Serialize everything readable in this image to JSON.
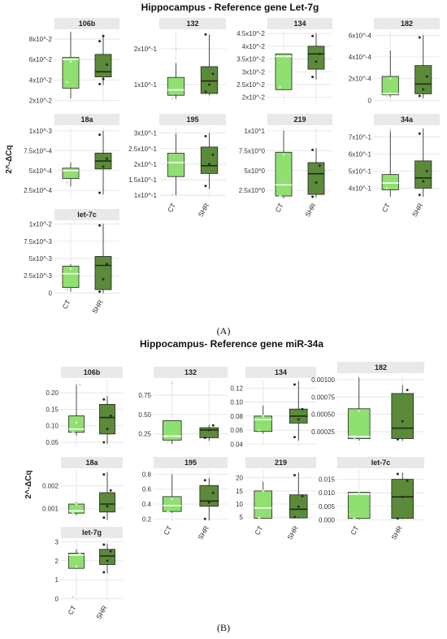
{
  "figure": {
    "panel_a_title": "Hippocampus - Reference gene Let-7g",
    "panel_b_title": "Hippocampus- Reference gene miR-34a",
    "panel_a_tag": "(A)",
    "panel_b_tag": "(B)",
    "y_axis_label": "2^-ΔCq"
  },
  "colors": {
    "ct": "#8fe070",
    "shr": "#5b8a3a",
    "strip": "#e9e9e9",
    "grid": "#e2e2e2",
    "point": "#2a2a2a",
    "point_ct": "#c9f0b8"
  },
  "chart_data": [
    {
      "panel": "A",
      "title": "106b",
      "type": "box",
      "categories": [
        "CT",
        "SHR"
      ],
      "ylim": [
        0.018,
        0.088
      ],
      "yticks": [
        0.02,
        0.04,
        0.06,
        0.08
      ],
      "ytick_labels": [
        "2x10^-2",
        "4x10^-2",
        "6x10^-2",
        "8x10^-2"
      ],
      "boxes": [
        {
          "group": "CT",
          "min": 0.022,
          "q1": 0.032,
          "median": 0.06,
          "q3": 0.062,
          "max": 0.087,
          "points": [
            0.038,
            0.058
          ]
        },
        {
          "group": "SHR",
          "min": 0.035,
          "q1": 0.043,
          "median": 0.048,
          "q3": 0.065,
          "max": 0.083,
          "points": [
            0.036,
            0.041,
            0.055,
            0.078,
            0.083
          ]
        }
      ]
    },
    {
      "panel": "A",
      "title": "132",
      "type": "box",
      "categories": [
        "CT",
        "SHR"
      ],
      "ylim": [
        0.05,
        0.25
      ],
      "yticks": [
        0.1,
        0.2
      ],
      "ytick_labels": [
        "1x10^-1",
        "2x10^-1"
      ],
      "boxes": [
        {
          "group": "CT",
          "min": 0.06,
          "q1": 0.07,
          "median": 0.085,
          "q3": 0.12,
          "max": 0.16,
          "points": [
            0.06,
            0.2
          ]
        },
        {
          "group": "SHR",
          "min": 0.07,
          "q1": 0.075,
          "median": 0.11,
          "q3": 0.15,
          "max": 0.24,
          "points": [
            0.08,
            0.1,
            0.13,
            0.24
          ]
        }
      ]
    },
    {
      "panel": "A",
      "title": "134",
      "type": "box",
      "categories": [
        "CT",
        "SHR"
      ],
      "ylim": [
        0.018,
        0.046
      ],
      "yticks": [
        0.02,
        0.025,
        0.03,
        0.035,
        0.04,
        0.045
      ],
      "ytick_labels": [
        "2x10^-2",
        "2.5x10^-2",
        "3x10^-2",
        "3.5x10^-2",
        "4x10^-2",
        "4.5x10^-2"
      ],
      "boxes": [
        {
          "group": "CT",
          "min": 0.023,
          "q1": 0.023,
          "median": 0.036,
          "q3": 0.037,
          "max": 0.037,
          "points": [
            0.024,
            0.036
          ]
        },
        {
          "group": "SHR",
          "min": 0.027,
          "q1": 0.031,
          "median": 0.037,
          "q3": 0.04,
          "max": 0.045,
          "points": [
            0.028,
            0.034,
            0.037,
            0.044
          ]
        }
      ]
    },
    {
      "panel": "A",
      "title": "182",
      "type": "box",
      "categories": [
        "CT",
        "SHR"
      ],
      "ylim": [
        -2e-05,
        0.00064
      ],
      "yticks": [
        0,
        0.0002,
        0.0004,
        0.0006
      ],
      "ytick_labels": [
        "0",
        "2x10^-4",
        "4x10^-4",
        "6x10^-4"
      ],
      "boxes": [
        {
          "group": "CT",
          "min": 3e-05,
          "q1": 5e-05,
          "median": 6e-05,
          "q3": 0.00022,
          "max": 0.00046,
          "points": [
            4e-05,
            0.0002
          ]
        },
        {
          "group": "SHR",
          "min": 2e-05,
          "q1": 6e-05,
          "median": 0.00015,
          "q3": 0.00032,
          "max": 0.0006,
          "points": [
            4e-05,
            0.0001,
            0.00022,
            0.00058
          ]
        }
      ]
    },
    {
      "panel": "A",
      "title": "18a",
      "type": "box",
      "categories": [
        "CT",
        "SHR"
      ],
      "ylim": [
        0.00015,
        0.00105
      ],
      "yticks": [
        0.00025,
        0.0005,
        0.00075,
        0.001
      ],
      "ytick_labels": [
        "2.5x10^-4",
        "5x10^-4",
        "7.5x10^-4",
        "1x10^-3"
      ],
      "boxes": [
        {
          "group": "CT",
          "min": 0.0003,
          "q1": 0.0004,
          "median": 0.0005,
          "q3": 0.00053,
          "max": 0.0006,
          "points": [
            0.00035,
            0.0005
          ]
        },
        {
          "group": "SHR",
          "min": 0.0002,
          "q1": 0.00052,
          "median": 0.00062,
          "q3": 0.00072,
          "max": 0.001,
          "points": [
            0.00022,
            0.00055,
            0.00065,
            0.00095
          ]
        }
      ]
    },
    {
      "panel": "A",
      "title": "195",
      "type": "box",
      "categories": [
        "CT",
        "SHR"
      ],
      "ylim": [
        0.09,
        0.32
      ],
      "yticks": [
        0.1,
        0.15,
        0.2,
        0.25,
        0.3
      ],
      "ytick_labels": [
        "1x10^-1",
        "1.5x10^-1",
        "2x10^-1",
        "2.5x10^-1",
        "3x10^-1"
      ],
      "boxes": [
        {
          "group": "CT",
          "min": 0.1,
          "q1": 0.16,
          "median": 0.205,
          "q3": 0.235,
          "max": 0.3,
          "points": [
            0.1,
            0.3
          ]
        },
        {
          "group": "SHR",
          "min": 0.12,
          "q1": 0.17,
          "median": 0.195,
          "q3": 0.255,
          "max": 0.3,
          "points": [
            0.13,
            0.2,
            0.23,
            0.29
          ]
        }
      ]
    },
    {
      "panel": "A",
      "title": "219",
      "type": "box",
      "categories": [
        "CT",
        "SHR"
      ],
      "ylim": [
        1.5,
        10.5
      ],
      "yticks": [
        2.5,
        5,
        7.5,
        10
      ],
      "ytick_labels": [
        "2.5x10^0",
        "5x10^0",
        "7.5x10^0",
        "1x10^1"
      ],
      "boxes": [
        {
          "group": "CT",
          "min": 1.5,
          "q1": 1.8,
          "median": 3.2,
          "q3": 7.3,
          "max": 10,
          "points": [
            1.8,
            7.0
          ]
        },
        {
          "group": "SHR",
          "min": 1.6,
          "q1": 2.0,
          "median": 4.6,
          "q3": 6.0,
          "max": 7.8,
          "points": [
            1.7,
            3.5,
            5.6,
            7.6
          ]
        }
      ]
    },
    {
      "panel": "A",
      "title": "34a",
      "type": "box",
      "categories": [
        "CT",
        "SHR"
      ],
      "ylim": [
        0.34,
        0.76
      ],
      "yticks": [
        0.4,
        0.5,
        0.6,
        0.7
      ],
      "ytick_labels": [
        "4x10^-1",
        "5x10^-1",
        "6x10^-1",
        "7x10^-1"
      ],
      "boxes": [
        {
          "group": "CT",
          "min": 0.35,
          "q1": 0.39,
          "median": 0.43,
          "q3": 0.48,
          "max": 0.74,
          "points": [
            0.4,
            0.74
          ]
        },
        {
          "group": "SHR",
          "min": 0.35,
          "q1": 0.4,
          "median": 0.46,
          "q3": 0.56,
          "max": 0.75,
          "points": [
            0.36,
            0.44,
            0.5,
            0.72
          ]
        }
      ]
    },
    {
      "panel": "A",
      "title": "let-7c",
      "type": "box",
      "categories": [
        "CT",
        "SHR"
      ],
      "ylim": [
        -0.0003,
        0.0103
      ],
      "yticks": [
        0,
        0.0025,
        0.005,
        0.0075,
        0.01
      ],
      "ytick_labels": [
        "0",
        "2.5x10^-3",
        "5x10^-3",
        "7.5x10^-3",
        "1x10^-2"
      ],
      "boxes": [
        {
          "group": "CT",
          "min": 0.0002,
          "q1": 0.0008,
          "median": 0.0028,
          "q3": 0.0039,
          "max": 0.0042,
          "points": [
            0.0005,
            0.0035
          ]
        },
        {
          "group": "SHR",
          "min": 0.0,
          "q1": 0.0005,
          "median": 0.004,
          "q3": 0.0053,
          "max": 0.01,
          "points": [
            0.0002,
            0.002,
            0.0042,
            0.0098
          ]
        }
      ]
    },
    {
      "panel": "B",
      "title": "106b",
      "type": "box",
      "categories": [
        "CT",
        "SHR"
      ],
      "ylim": [
        0.04,
        0.24
      ],
      "yticks": [
        0.05,
        0.1,
        0.15,
        0.2
      ],
      "ytick_labels": [
        "0.05",
        "0.10",
        "0.15",
        "0.20"
      ],
      "boxes": [
        {
          "group": "CT",
          "min": 0.07,
          "q1": 0.08,
          "median": 0.09,
          "q3": 0.13,
          "max": 0.225,
          "points": [
            0.08,
            0.11,
            0.225
          ]
        },
        {
          "group": "SHR",
          "min": 0.045,
          "q1": 0.075,
          "median": 0.125,
          "q3": 0.165,
          "max": 0.19,
          "points": [
            0.05,
            0.09,
            0.13,
            0.18
          ]
        }
      ]
    },
    {
      "panel": "B",
      "title": "132",
      "type": "box",
      "categories": [
        "CT",
        "SHR"
      ],
      "ylim": [
        0.1,
        0.95
      ],
      "yticks": [
        0.25,
        0.5,
        0.75
      ],
      "ytick_labels": [
        "0.25",
        "0.50",
        "0.75"
      ],
      "boxes": [
        {
          "group": "CT",
          "min": 0.12,
          "q1": 0.17,
          "median": 0.22,
          "q3": 0.42,
          "max": 0.42,
          "points": [
            0.15,
            0.9
          ]
        },
        {
          "group": "SHR",
          "min": 0.16,
          "q1": 0.2,
          "median": 0.3,
          "q3": 0.33,
          "max": 0.37,
          "points": [
            0.2,
            0.3,
            0.36
          ]
        }
      ]
    },
    {
      "panel": "B",
      "title": "134",
      "type": "box",
      "categories": [
        "CT",
        "SHR"
      ],
      "ylim": [
        0.038,
        0.132
      ],
      "yticks": [
        0.04,
        0.06,
        0.08,
        0.1,
        0.12
      ],
      "ytick_labels": [
        "0.04",
        "0.06",
        "0.08",
        "0.10",
        "0.12"
      ],
      "boxes": [
        {
          "group": "CT",
          "min": 0.055,
          "q1": 0.058,
          "median": 0.075,
          "q3": 0.08,
          "max": 0.095,
          "points": [
            0.06,
            0.08
          ]
        },
        {
          "group": "SHR",
          "min": 0.045,
          "q1": 0.07,
          "median": 0.08,
          "q3": 0.09,
          "max": 0.13,
          "points": [
            0.05,
            0.075,
            0.09,
            0.125
          ]
        }
      ]
    },
    {
      "panel": "B",
      "title": "182",
      "type": "box",
      "categories": [
        "CT",
        "SHR"
      ],
      "ylim": [
        5e-05,
        0.00107
      ],
      "yticks": [
        0.00025,
        0.0005,
        0.00075,
        0.001
      ],
      "ytick_labels": [
        "0.00025",
        "0.00050",
        "0.00075",
        "0.00100"
      ],
      "boxes": [
        {
          "group": "CT",
          "min": 0.00012,
          "q1": 0.00015,
          "median": 0.00018,
          "q3": 0.00058,
          "max": 0.00103,
          "points": [
            0.00014,
            0.00055
          ]
        },
        {
          "group": "SHR",
          "min": 0.00012,
          "q1": 0.00015,
          "median": 0.0003,
          "q3": 0.0008,
          "max": 0.00092,
          "points": [
            0.00014,
            0.0004,
            0.00085
          ]
        }
      ]
    },
    {
      "panel": "B",
      "title": "18a",
      "type": "box",
      "categories": [
        "CT",
        "SHR"
      ],
      "ylim": [
        0.00045,
        0.0027
      ],
      "yticks": [
        0.001,
        0.002
      ],
      "ytick_labels": [
        "0.001",
        "0.002"
      ],
      "boxes": [
        {
          "group": "CT",
          "min": 0.0007,
          "q1": 0.0008,
          "median": 0.0009,
          "q3": 0.0012,
          "max": 0.0013,
          "points": [
            0.0008,
            0.0012
          ]
        },
        {
          "group": "SHR",
          "min": 0.0005,
          "q1": 0.00085,
          "median": 0.0012,
          "q3": 0.0017,
          "max": 0.0026,
          "points": [
            0.0006,
            0.0011,
            0.0018,
            0.0025
          ]
        }
      ]
    },
    {
      "panel": "B",
      "title": "195",
      "type": "box",
      "categories": [
        "CT",
        "SHR"
      ],
      "ylim": [
        0.17,
        0.86
      ],
      "yticks": [
        0.2,
        0.4,
        0.6,
        0.8
      ],
      "ytick_labels": [
        "0.2",
        "0.4",
        "0.6",
        "0.8"
      ],
      "boxes": [
        {
          "group": "CT",
          "min": 0.28,
          "q1": 0.3,
          "median": 0.38,
          "q3": 0.5,
          "max": 0.8,
          "points": [
            0.3,
            0.47
          ]
        },
        {
          "group": "SHR",
          "min": 0.18,
          "q1": 0.37,
          "median": 0.44,
          "q3": 0.65,
          "max": 0.75,
          "points": [
            0.2,
            0.42,
            0.55,
            0.72
          ]
        }
      ]
    },
    {
      "panel": "B",
      "title": "219",
      "type": "box",
      "categories": [
        "CT",
        "SHR"
      ],
      "ylim": [
        3.5,
        23
      ],
      "yticks": [
        5,
        10,
        15,
        20
      ],
      "ytick_labels": [
        "5",
        "10",
        "15",
        "20"
      ],
      "boxes": [
        {
          "group": "CT",
          "min": 4.5,
          "q1": 4.6,
          "median": 8.5,
          "q3": 15,
          "max": 18.5,
          "points": [
            4.8,
            15
          ]
        },
        {
          "group": "SHR",
          "min": 4.5,
          "q1": 4.7,
          "median": 8.0,
          "q3": 13.5,
          "max": 22,
          "points": [
            5,
            9,
            13,
            21
          ]
        }
      ]
    },
    {
      "panel": "B",
      "title": "let-7c",
      "type": "box",
      "categories": [
        "CT",
        "SHR"
      ],
      "ylim": [
        -0.0005,
        0.0185
      ],
      "yticks": [
        0,
        0.005,
        0.01,
        0.015
      ],
      "ytick_labels": [
        "0.000",
        "0.005",
        "0.010",
        "0.015"
      ],
      "boxes": [
        {
          "group": "CT",
          "min": 0.0002,
          "q1": 0.0005,
          "median": 0.0095,
          "q3": 0.0102,
          "max": 0.0102,
          "points": [
            0.0005,
            0.0098
          ]
        },
        {
          "group": "SHR",
          "min": 0.0003,
          "q1": 0.0005,
          "median": 0.0085,
          "q3": 0.015,
          "max": 0.0175,
          "points": [
            0.0005,
            0.0085,
            0.0145,
            0.017
          ]
        }
      ]
    },
    {
      "panel": "B",
      "title": "let-7g",
      "type": "box",
      "categories": [
        "CT",
        "SHR"
      ],
      "ylim": [
        -0.1,
        3.1
      ],
      "yticks": [
        0,
        1,
        2,
        3
      ],
      "ytick_labels": [
        "0",
        "1",
        "2",
        "3"
      ],
      "boxes": [
        {
          "group": "CT",
          "min": 1.6,
          "q1": 1.6,
          "median": 2.3,
          "q3": 2.4,
          "max": 2.6,
          "points": [
            0.1,
            1.7,
            2.4
          ]
        },
        {
          "group": "SHR",
          "min": 1.35,
          "q1": 1.8,
          "median": 2.25,
          "q3": 2.6,
          "max": 2.9,
          "points": [
            1.4,
            2.0,
            2.5,
            2.85
          ]
        }
      ]
    }
  ]
}
